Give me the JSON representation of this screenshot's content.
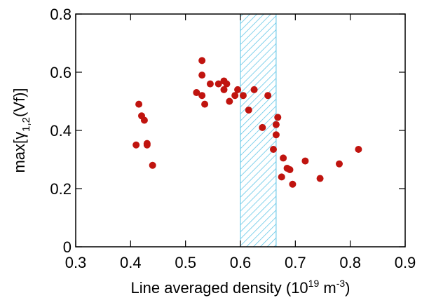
{
  "chart_data": {
    "type": "scatter",
    "xlabel": {
      "text": "Line averaged density (10",
      "sup1": "19",
      "mid": " m",
      "sup2": "-3",
      "end": ")"
    },
    "ylabel": {
      "text": "max[γ",
      "sub": "1,2",
      "end": "(Vf)]"
    },
    "xlim": [
      0.3,
      0.9
    ],
    "xticks": [
      0.3,
      0.4,
      0.5,
      0.6,
      0.7,
      0.8,
      0.9
    ],
    "ylim": [
      0,
      0.8
    ],
    "yticks": [
      0,
      0.2,
      0.4,
      0.6,
      0.8
    ],
    "shaded_region": {
      "x": [
        0.6,
        0.665
      ],
      "color": "#5bc4e6"
    },
    "series": [
      {
        "color": "#c0140f",
        "x": [
          0.41,
          0.415,
          0.42,
          0.425,
          0.43,
          0.43,
          0.44,
          0.52,
          0.53,
          0.53,
          0.53,
          0.535,
          0.545,
          0.56,
          0.57,
          0.57,
          0.575,
          0.58,
          0.59,
          0.595,
          0.605,
          0.615,
          0.625,
          0.64,
          0.65,
          0.66,
          0.665,
          0.665,
          0.668,
          0.675,
          0.678,
          0.685,
          0.69,
          0.695,
          0.718,
          0.745,
          0.78,
          0.815
        ],
        "values": [
          0.35,
          0.49,
          0.45,
          0.435,
          0.355,
          0.35,
          0.28,
          0.53,
          0.52,
          0.64,
          0.59,
          0.49,
          0.56,
          0.56,
          0.57,
          0.54,
          0.56,
          0.5,
          0.52,
          0.54,
          0.52,
          0.47,
          0.54,
          0.41,
          0.52,
          0.335,
          0.385,
          0.42,
          0.445,
          0.24,
          0.305,
          0.27,
          0.265,
          0.215,
          0.295,
          0.235,
          0.285,
          0.335
        ]
      }
    ]
  }
}
